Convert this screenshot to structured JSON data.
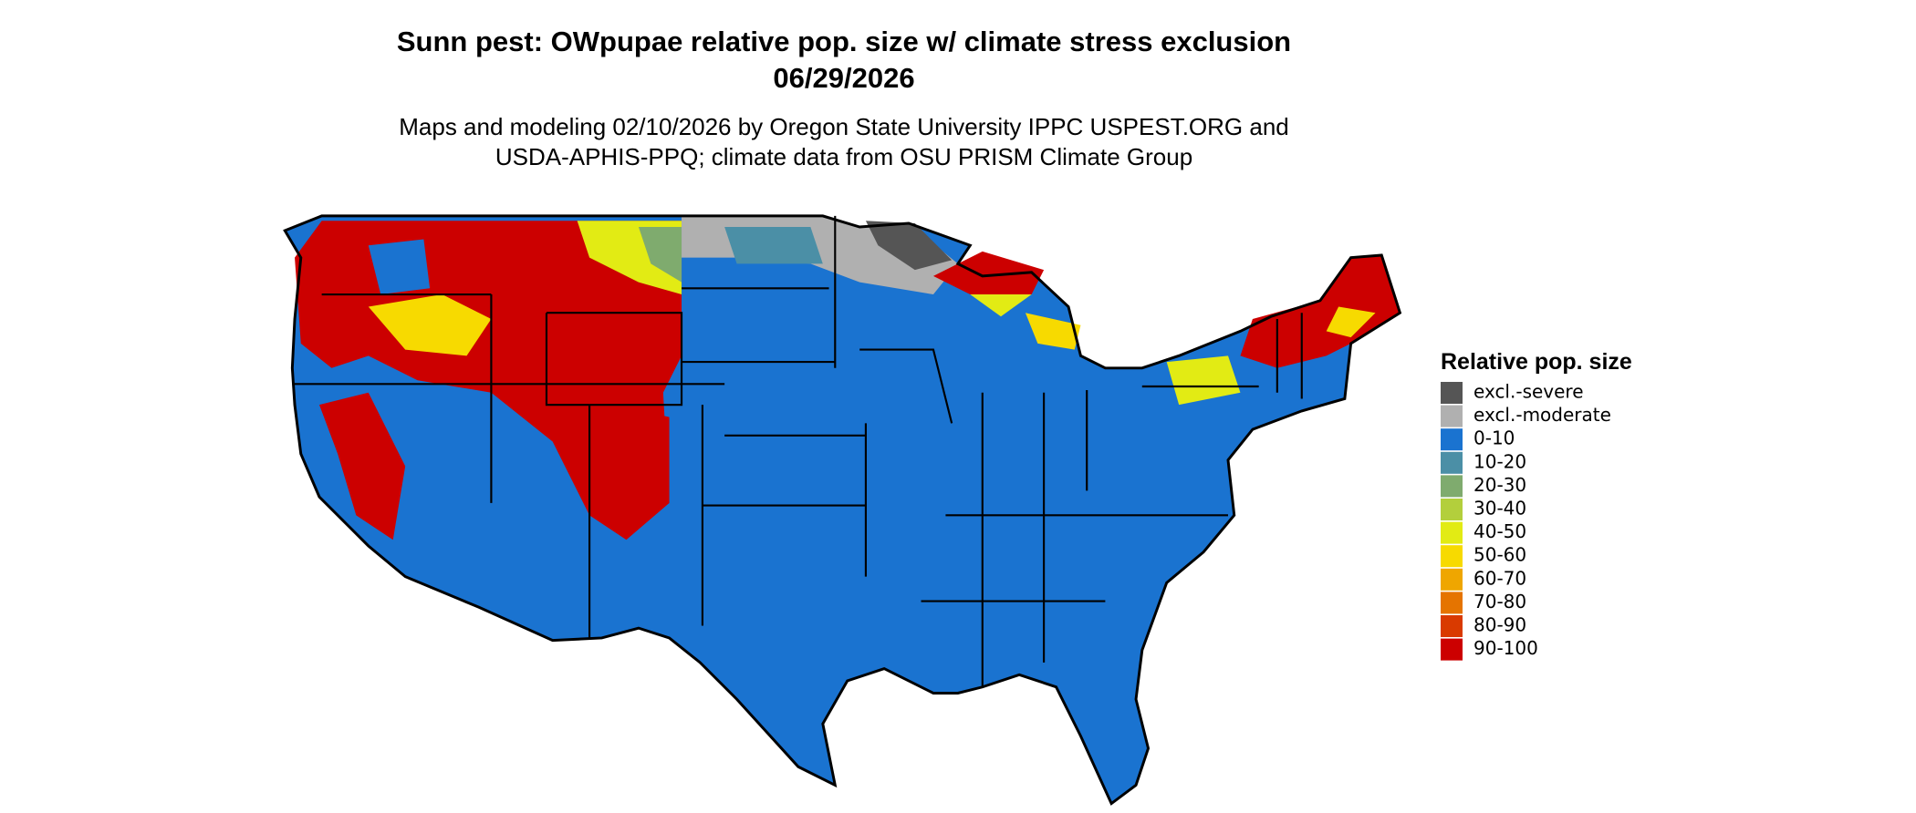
{
  "title": [
    "Sunn pest: OWpupae relative pop. size w/ climate stress exclusion",
    "06/29/2026"
  ],
  "subtitle": [
    "Maps and modeling 02/10/2026 by Oregon State University IPPC USPEST.ORG and",
    "USDA-APHIS-PPQ; climate data from OSU PRISM Climate Group"
  ],
  "legend": {
    "title": "Relative pop. size",
    "items": [
      {
        "label": "excl.-severe",
        "color": "#555555"
      },
      {
        "label": "excl.-moderate",
        "color": "#b0b0b0"
      },
      {
        "label": "0-10",
        "color": "#1a73d0"
      },
      {
        "label": "10-20",
        "color": "#4b8fa6"
      },
      {
        "label": "20-30",
        "color": "#7fab6e"
      },
      {
        "label": "30-40",
        "color": "#b3cf3c"
      },
      {
        "label": "40-50",
        "color": "#e2eb14"
      },
      {
        "label": "50-60",
        "color": "#f7da00"
      },
      {
        "label": "60-70",
        "color": "#efa600"
      },
      {
        "label": "70-80",
        "color": "#e57400"
      },
      {
        "label": "80-90",
        "color": "#d93a00"
      },
      {
        "label": "90-100",
        "color": "#cc0000"
      }
    ]
  }
}
